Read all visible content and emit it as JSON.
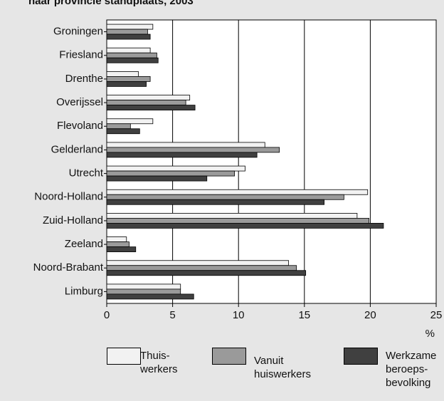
{
  "chart_data": {
    "type": "hbar",
    "title": "naar provincie standplaats, 2003",
    "x_label": "%",
    "categories": [
      "Groningen",
      "Friesland",
      "Drenthe",
      "Overijssel",
      "Flevoland",
      "Gelderland",
      "Utrecht",
      "Noord-Holland",
      "Zuid-Holland",
      "Zeeland",
      "Noord-Brabant",
      "Limburg"
    ],
    "series": [
      {
        "name": "Thuis-\nwerkers",
        "color": "#f2f2f2",
        "values": [
          3.5,
          3.3,
          2.4,
          6.3,
          3.5,
          12.0,
          10.5,
          19.8,
          19.0,
          1.5,
          13.8,
          5.6
        ]
      },
      {
        "name": "Vanuit\nhuiswerkers",
        "color": "#9a9a9a",
        "values": [
          3.1,
          3.8,
          3.3,
          6.0,
          1.8,
          13.1,
          9.7,
          18.0,
          19.9,
          1.7,
          14.4,
          5.6
        ]
      },
      {
        "name": "Werkzame\nberoeps-\nbevolking",
        "color": "#404040",
        "values": [
          3.3,
          3.9,
          3.0,
          6.7,
          2.5,
          11.4,
          7.6,
          16.5,
          21.0,
          2.2,
          15.1,
          6.6
        ]
      }
    ],
    "xlim": [
      0,
      25
    ],
    "xticks": [
      0,
      5,
      10,
      15,
      20,
      25
    ],
    "grid": true
  }
}
